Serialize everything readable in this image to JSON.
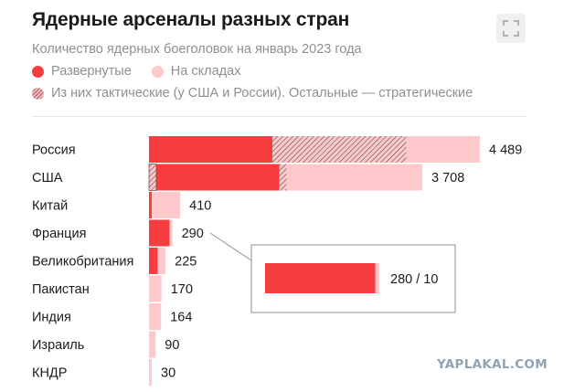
{
  "header": {
    "title": "Ядерные арсеналы разных стран",
    "subtitle": "Количество ядерных боеголовок на январь 2023 года"
  },
  "legend": {
    "deployed": "Развернутые",
    "stored": "На складах",
    "tactical": "Из них тактические (у США и России). Остальные — стратегические"
  },
  "colors": {
    "deployed": "#f63d3f",
    "stored": "#ffc8ca",
    "tactical_stripe": "#5b3030",
    "leader_line": "#8f8f8f"
  },
  "icons": {
    "expand": "expand-icon"
  },
  "chart_data": {
    "type": "bar",
    "orientation": "horizontal",
    "stacked": true,
    "categories": [
      "Россия",
      "США",
      "Китай",
      "Франция",
      "Великобритания",
      "Пакистан",
      "Индия",
      "Израиль",
      "КНДР"
    ],
    "totals": [
      4489,
      3708,
      410,
      290,
      225,
      170,
      164,
      90,
      30
    ],
    "total_labels": [
      "4 489",
      "3 708",
      "410",
      "290",
      "225",
      "170",
      "164",
      "90",
      "30"
    ],
    "deployed": [
      1674,
      1770,
      24,
      280,
      120,
      0,
      0,
      0,
      0
    ],
    "tactical": [
      1816,
      100,
      0,
      0,
      0,
      0,
      0,
      0,
      0
    ],
    "stored": [
      999,
      1838,
      386,
      10,
      105,
      170,
      164,
      90,
      30
    ],
    "xlim": [
      0,
      4489
    ],
    "inset": {
      "category": "Франция",
      "deployed": 280,
      "stored": 10,
      "label": "280 / 10"
    }
  },
  "watermark": "YAPLAKAL.COM"
}
